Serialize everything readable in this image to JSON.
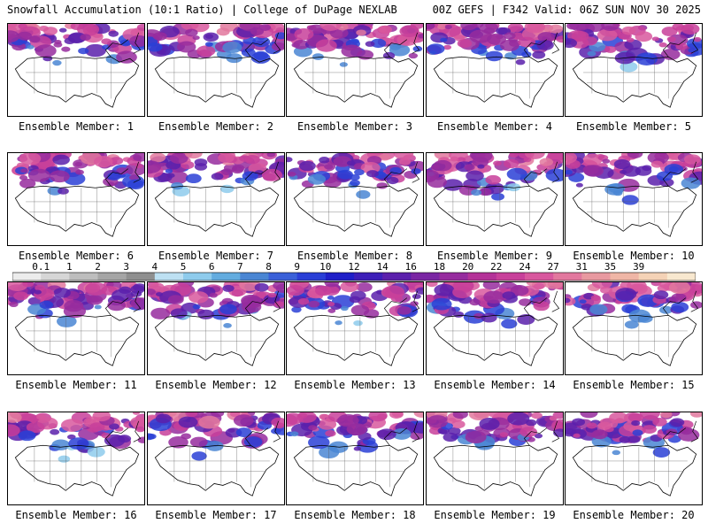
{
  "header": {
    "title": "Snowfall Accumulation (10:1 Ratio) | College of DuPage NEXLAB",
    "run_info": "00Z GEFS | F342 Valid: 06Z SUN NOV 30 2025"
  },
  "panels": [
    {
      "label": "Ensemble Member: 1"
    },
    {
      "label": "Ensemble Member: 2"
    },
    {
      "label": "Ensemble Member: 3"
    },
    {
      "label": "Ensemble Member: 4"
    },
    {
      "label": "Ensemble Member: 5"
    },
    {
      "label": "Ensemble Member: 6"
    },
    {
      "label": "Ensemble Member: 7"
    },
    {
      "label": "Ensemble Member: 8"
    },
    {
      "label": "Ensemble Member: 9"
    },
    {
      "label": "Ensemble Member: 10"
    },
    {
      "label": "Ensemble Member: 11"
    },
    {
      "label": "Ensemble Member: 12"
    },
    {
      "label": "Ensemble Member: 13"
    },
    {
      "label": "Ensemble Member: 14"
    },
    {
      "label": "Ensemble Member: 15"
    },
    {
      "label": "Ensemble Member: 16"
    },
    {
      "label": "Ensemble Member: 17"
    },
    {
      "label": "Ensemble Member: 18"
    },
    {
      "label": "Ensemble Member: 19"
    },
    {
      "label": "Ensemble Member: 20"
    }
  ],
  "chart_data": {
    "type": "heatmap",
    "title": "Snowfall Accumulation (10:1 Ratio)",
    "colorbar": {
      "ticks": [
        "0.1",
        "1",
        "2",
        "3",
        "4",
        "5",
        "6",
        "7",
        "8",
        "9",
        "10",
        "12",
        "14",
        "16",
        "18",
        "20",
        "22",
        "24",
        "27",
        "31",
        "35",
        "39"
      ],
      "colors": [
        "#ececec",
        "#d6d6d6",
        "#bdbdbd",
        "#a5a5a5",
        "#8f8f8f",
        "#bde0f2",
        "#8ecbec",
        "#63acdf",
        "#4a86d3",
        "#3a60d8",
        "#2a3fd6",
        "#2020c8",
        "#3d1fb8",
        "#5b20ac",
        "#7a26a3",
        "#962c9e",
        "#b43298",
        "#c8409a",
        "#d8589e",
        "#e2789e",
        "#e899a0",
        "#efb6a6",
        "#f4d2b6",
        "#f8e8cf"
      ]
    }
  }
}
